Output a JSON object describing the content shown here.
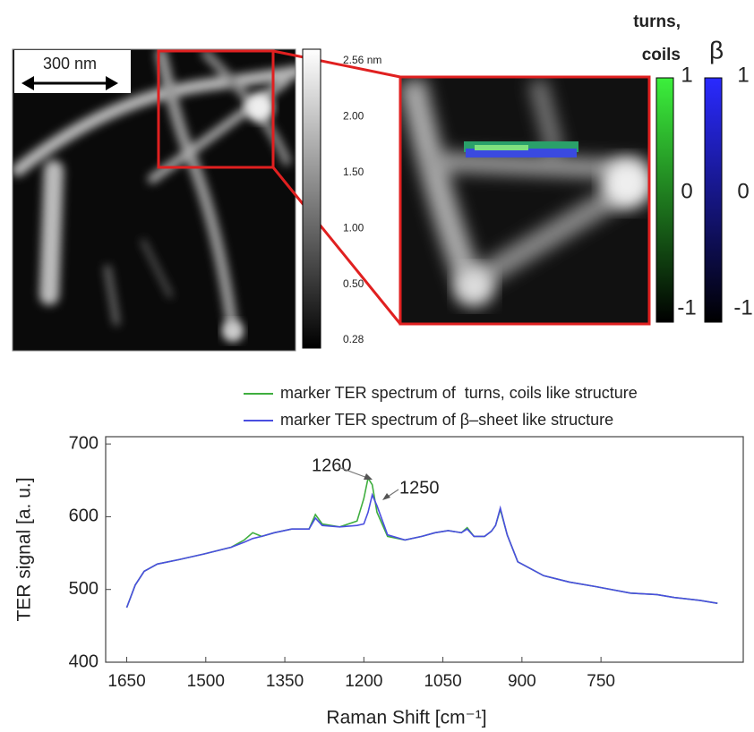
{
  "figure": {
    "scale_bar": "300 nm",
    "height_colorbar_ticks": [
      "2.56 nm",
      "2.00",
      "1.50",
      "1.00",
      "0.50",
      "0.28"
    ],
    "turns_label": [
      "turns,",
      "coils"
    ],
    "beta_label": "β",
    "turns_colorbar_ticks": [
      "1",
      "0",
      "-1"
    ],
    "beta_colorbar_ticks": [
      "1",
      "0",
      "-1"
    ]
  },
  "chart_data": {
    "type": "line",
    "xlabel": "Raman Shift [cm⁻¹]",
    "ylabel": "TER signal [a. u.]",
    "annotations": [
      "1260",
      "1250"
    ],
    "x": [
      1650,
      1634,
      1617,
      1592,
      1551,
      1502,
      1452,
      1427,
      1411,
      1394,
      1370,
      1337,
      1304,
      1292,
      1279,
      1246,
      1213,
      1200,
      1192,
      1184,
      1175,
      1155,
      1122,
      1090,
      1065,
      1040,
      1015,
      1004,
      991,
      971,
      958,
      950,
      941,
      928,
      908,
      859,
      809,
      760,
      694,
      644,
      611,
      562,
      529
    ],
    "series": [
      {
        "name": "marker TER spectrum of  turns, coils like structure",
        "color": "#3fae3f",
        "values": [
          475,
          506,
          525,
          535,
          541,
          549,
          558,
          568,
          578,
          573,
          578,
          583,
          583,
          603,
          590,
          586,
          594,
          625,
          653,
          644,
          606,
          573,
          568,
          573,
          578,
          581,
          578,
          585,
          573,
          573,
          580,
          588,
          610,
          575,
          538,
          519,
          510,
          504,
          495,
          493,
          489,
          485,
          481
        ]
      },
      {
        "name": "marker TER spectrum of β–sheet like structure",
        "color": "#4a4ee0",
        "values": [
          475,
          506,
          525,
          535,
          541,
          549,
          558,
          565,
          570,
          573,
          578,
          583,
          583,
          598,
          588,
          586,
          588,
          590,
          606,
          630,
          615,
          575,
          568,
          573,
          578,
          581,
          578,
          583,
          573,
          573,
          580,
          588,
          612,
          575,
          538,
          519,
          510,
          504,
          495,
          493,
          489,
          485,
          481
        ]
      }
    ],
    "xlim": [
      1690,
      480
    ],
    "xticks": [
      1650,
      1500,
      1350,
      1200,
      1050,
      900,
      750
    ],
    "ylim": [
      400,
      710
    ],
    "yticks": [
      400,
      500,
      600,
      700
    ]
  }
}
